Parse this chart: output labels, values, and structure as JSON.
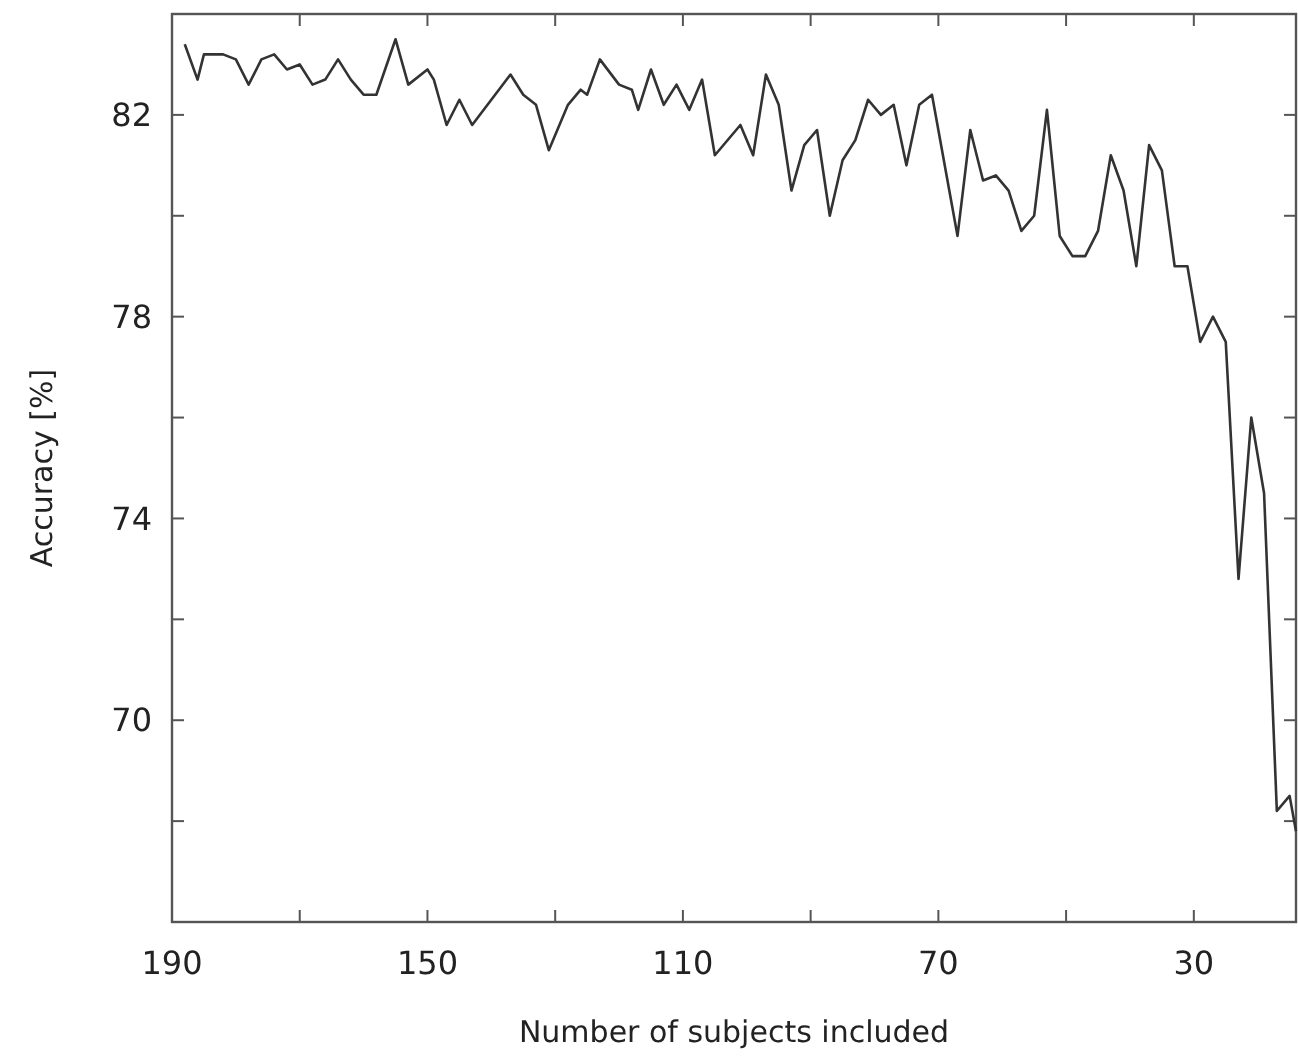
{
  "chart_data": {
    "type": "line",
    "xlabel": "Number of subjects included",
    "ylabel": "Accuracy [%]",
    "xlim": [
      190,
      14
    ],
    "ylim": [
      66,
      84
    ],
    "xticks": [
      190,
      {
        "value": 170,
        "label": null
      },
      150,
      {
        "value": 130,
        "label": null
      },
      110,
      {
        "value": 90,
        "label": null
      },
      70,
      {
        "value": 50,
        "label": null
      },
      30
    ],
    "yticks": [
      {
        "value": 68,
        "label": null
      },
      70,
      {
        "value": 72,
        "label": null
      },
      74,
      {
        "value": 76,
        "label": null
      },
      78,
      {
        "value": 80,
        "label": null
      },
      82
    ],
    "grid": false,
    "marker": "none",
    "line_style": "solid",
    "series": [
      {
        "color": "#333333",
        "x": [
          188,
          186,
          185,
          182,
          180,
          178,
          176,
          174,
          172,
          170,
          168,
          166,
          164,
          162,
          160,
          158,
          155,
          153,
          150,
          149,
          147,
          145,
          143,
          137,
          135,
          133,
          131,
          128,
          126,
          125,
          123,
          120,
          118,
          117,
          115,
          113,
          111,
          109,
          107,
          105,
          101,
          99,
          97,
          95,
          93,
          91,
          89,
          87,
          85,
          83,
          81,
          79,
          77,
          75,
          73,
          71,
          67,
          65,
          63,
          61,
          59,
          57,
          55,
          53,
          51,
          49,
          47,
          45,
          43,
          41,
          39,
          37,
          35,
          33,
          31,
          29,
          27,
          25,
          23,
          21,
          19,
          17,
          15,
          14
        ],
        "values": [
          83.4,
          82.7,
          83.2,
          83.2,
          83.1,
          82.6,
          83.1,
          83.2,
          82.9,
          83.0,
          82.6,
          82.7,
          83.1,
          82.7,
          82.4,
          82.4,
          83.5,
          82.6,
          82.9,
          82.7,
          81.8,
          82.3,
          81.8,
          82.8,
          82.4,
          82.2,
          81.3,
          82.2,
          82.5,
          82.4,
          83.1,
          82.6,
          82.5,
          82.1,
          82.9,
          82.2,
          82.6,
          82.1,
          82.7,
          81.2,
          81.8,
          81.2,
          82.8,
          82.2,
          80.5,
          81.4,
          81.7,
          80.0,
          81.1,
          81.5,
          82.3,
          82.0,
          82.2,
          81.0,
          82.2,
          82.4,
          79.6,
          81.7,
          80.7,
          80.8,
          80.5,
          79.7,
          80.0,
          82.1,
          79.6,
          79.2,
          79.2,
          79.7,
          81.2,
          80.5,
          79.0,
          81.4,
          80.9,
          79.0,
          79.0,
          77.5,
          78.0,
          77.5,
          72.8,
          76.0,
          74.5,
          68.2,
          68.5,
          67.8
        ]
      }
    ]
  }
}
